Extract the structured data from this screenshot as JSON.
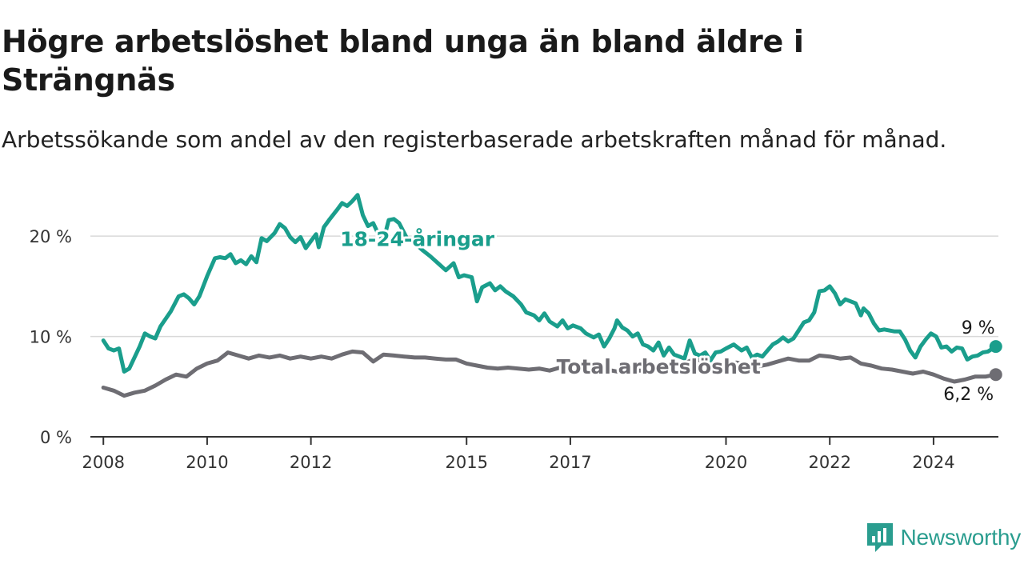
{
  "title": "Högre arbetslöshet bland unga än bland äldre i Strängnäs",
  "subtitle": "Arbetssökande som andel av den registerbaserade arbetskraften månad för månad.",
  "brand": {
    "name": "Newsworthy",
    "color": "#2a9d8f",
    "icon": "newsworthy-logo-icon"
  },
  "chart_data": {
    "type": "line",
    "title": "Högre arbetslöshet bland unga än bland äldre i Strängnäs",
    "subtitle": "Arbetssökande som andel av den registerbaserade arbetskraften månad för månad.",
    "xlabel": "",
    "ylabel": "",
    "x_range": [
      2007.75,
      2025.25
    ],
    "ylim": [
      0,
      24
    ],
    "y_ticks": [
      0,
      10,
      20
    ],
    "y_tick_labels": [
      "0 %",
      "10 %",
      "20 %"
    ],
    "x_ticks": [
      2008,
      2010,
      2012,
      2015,
      2017,
      2020,
      2022,
      2024
    ],
    "x_tick_labels": [
      "2008",
      "2010",
      "2012",
      "2015",
      "2017",
      "2020",
      "2022",
      "2024"
    ],
    "grid": "horizontal",
    "legend": "inline labels",
    "series": [
      {
        "name": "18-24-åringar",
        "color": "#1a9e8c",
        "end_label": "9 %",
        "points": [
          [
            2008.0,
            9.6
          ],
          [
            2008.1,
            8.8
          ],
          [
            2008.2,
            8.6
          ],
          [
            2008.3,
            8.8
          ],
          [
            2008.4,
            6.5
          ],
          [
            2008.5,
            6.8
          ],
          [
            2008.7,
            9.0
          ],
          [
            2008.8,
            10.3
          ],
          [
            2008.9,
            10.0
          ],
          [
            2009.0,
            9.8
          ],
          [
            2009.1,
            11.0
          ],
          [
            2009.3,
            12.5
          ],
          [
            2009.45,
            14.0
          ],
          [
            2009.55,
            14.2
          ],
          [
            2009.65,
            13.8
          ],
          [
            2009.75,
            13.2
          ],
          [
            2009.85,
            14.0
          ],
          [
            2010.0,
            16.0
          ],
          [
            2010.15,
            17.8
          ],
          [
            2010.25,
            17.9
          ],
          [
            2010.35,
            17.8
          ],
          [
            2010.45,
            18.2
          ],
          [
            2010.55,
            17.3
          ],
          [
            2010.65,
            17.6
          ],
          [
            2010.75,
            17.2
          ],
          [
            2010.85,
            18.0
          ],
          [
            2010.95,
            17.4
          ],
          [
            2011.05,
            19.8
          ],
          [
            2011.15,
            19.5
          ],
          [
            2011.3,
            20.3
          ],
          [
            2011.4,
            21.2
          ],
          [
            2011.5,
            20.8
          ],
          [
            2011.6,
            19.9
          ],
          [
            2011.7,
            19.4
          ],
          [
            2011.8,
            19.9
          ],
          [
            2011.9,
            18.8
          ],
          [
            2012.0,
            19.5
          ],
          [
            2012.1,
            20.2
          ],
          [
            2012.15,
            18.9
          ],
          [
            2012.25,
            20.9
          ],
          [
            2012.35,
            21.6
          ],
          [
            2012.5,
            22.6
          ],
          [
            2012.6,
            23.3
          ],
          [
            2012.7,
            23.0
          ],
          [
            2012.8,
            23.5
          ],
          [
            2012.9,
            24.1
          ],
          [
            2013.0,
            22.1
          ],
          [
            2013.1,
            21.0
          ],
          [
            2013.2,
            21.3
          ],
          [
            2013.3,
            20.2
          ],
          [
            2013.4,
            19.6
          ],
          [
            2013.5,
            21.6
          ],
          [
            2013.6,
            21.7
          ],
          [
            2013.7,
            21.3
          ],
          [
            2013.85,
            19.8
          ],
          [
            2014.0,
            19.3
          ],
          [
            2014.15,
            18.6
          ],
          [
            2014.3,
            18.0
          ],
          [
            2014.45,
            17.3
          ],
          [
            2014.6,
            16.6
          ],
          [
            2014.75,
            17.3
          ],
          [
            2014.85,
            15.9
          ],
          [
            2014.95,
            16.1
          ],
          [
            2015.1,
            15.9
          ],
          [
            2015.2,
            13.5
          ],
          [
            2015.3,
            14.9
          ],
          [
            2015.45,
            15.3
          ],
          [
            2015.55,
            14.6
          ],
          [
            2015.65,
            15.0
          ],
          [
            2015.75,
            14.5
          ],
          [
            2015.9,
            14.0
          ],
          [
            2016.05,
            13.2
          ],
          [
            2016.15,
            12.4
          ],
          [
            2016.3,
            12.1
          ],
          [
            2016.4,
            11.6
          ],
          [
            2016.5,
            12.3
          ],
          [
            2016.6,
            11.5
          ],
          [
            2016.75,
            11.0
          ],
          [
            2016.85,
            11.6
          ],
          [
            2016.95,
            10.8
          ],
          [
            2017.05,
            11.1
          ],
          [
            2017.2,
            10.8
          ],
          [
            2017.3,
            10.3
          ],
          [
            2017.45,
            9.9
          ],
          [
            2017.55,
            10.2
          ],
          [
            2017.65,
            9.0
          ],
          [
            2017.75,
            9.8
          ],
          [
            2017.85,
            10.8
          ],
          [
            2017.9,
            11.6
          ],
          [
            2018.0,
            10.9
          ],
          [
            2018.1,
            10.6
          ],
          [
            2018.2,
            10.0
          ],
          [
            2018.3,
            10.3
          ],
          [
            2018.4,
            9.2
          ],
          [
            2018.5,
            9.0
          ],
          [
            2018.6,
            8.6
          ],
          [
            2018.7,
            9.4
          ],
          [
            2018.8,
            8.1
          ],
          [
            2018.9,
            8.9
          ],
          [
            2019.0,
            8.2
          ],
          [
            2019.1,
            8.0
          ],
          [
            2019.2,
            7.8
          ],
          [
            2019.3,
            9.6
          ],
          [
            2019.4,
            8.3
          ],
          [
            2019.5,
            8.1
          ],
          [
            2019.6,
            8.4
          ],
          [
            2019.7,
            7.6
          ],
          [
            2019.8,
            8.4
          ],
          [
            2019.9,
            8.5
          ],
          [
            2020.0,
            8.8
          ],
          [
            2020.15,
            9.2
          ],
          [
            2020.3,
            8.6
          ],
          [
            2020.4,
            8.9
          ],
          [
            2020.5,
            7.9
          ],
          [
            2020.6,
            8.2
          ],
          [
            2020.7,
            8.0
          ],
          [
            2020.8,
            8.6
          ],
          [
            2020.9,
            9.2
          ],
          [
            2021.0,
            9.5
          ],
          [
            2021.1,
            9.9
          ],
          [
            2021.2,
            9.5
          ],
          [
            2021.3,
            9.8
          ],
          [
            2021.4,
            10.6
          ],
          [
            2021.5,
            11.4
          ],
          [
            2021.6,
            11.6
          ],
          [
            2021.7,
            12.4
          ],
          [
            2021.8,
            14.5
          ],
          [
            2021.9,
            14.6
          ],
          [
            2022.0,
            15.0
          ],
          [
            2022.1,
            14.3
          ],
          [
            2022.2,
            13.2
          ],
          [
            2022.3,
            13.7
          ],
          [
            2022.4,
            13.5
          ],
          [
            2022.5,
            13.3
          ],
          [
            2022.6,
            12.1
          ],
          [
            2022.65,
            12.8
          ],
          [
            2022.75,
            12.3
          ],
          [
            2022.85,
            11.3
          ],
          [
            2022.95,
            10.6
          ],
          [
            2023.05,
            10.7
          ],
          [
            2023.15,
            10.6
          ],
          [
            2023.25,
            10.5
          ],
          [
            2023.35,
            10.5
          ],
          [
            2023.45,
            9.7
          ],
          [
            2023.55,
            8.6
          ],
          [
            2023.65,
            7.9
          ],
          [
            2023.75,
            9.0
          ],
          [
            2023.85,
            9.7
          ],
          [
            2023.95,
            10.3
          ],
          [
            2024.05,
            10.0
          ],
          [
            2024.15,
            8.9
          ],
          [
            2024.25,
            9.0
          ],
          [
            2024.35,
            8.5
          ],
          [
            2024.45,
            8.9
          ],
          [
            2024.55,
            8.8
          ],
          [
            2024.65,
            7.7
          ],
          [
            2024.75,
            8.0
          ],
          [
            2024.85,
            8.1
          ],
          [
            2024.95,
            8.4
          ],
          [
            2025.05,
            8.5
          ],
          [
            2025.2,
            9.0
          ]
        ]
      },
      {
        "name": "Total arbetslöshet",
        "color": "#6e6d73",
        "end_label": "6,2 %",
        "points": [
          [
            2008.0,
            4.9
          ],
          [
            2008.2,
            4.6
          ],
          [
            2008.4,
            4.1
          ],
          [
            2008.6,
            4.4
          ],
          [
            2008.8,
            4.6
          ],
          [
            2009.0,
            5.1
          ],
          [
            2009.2,
            5.7
          ],
          [
            2009.4,
            6.2
          ],
          [
            2009.6,
            6.0
          ],
          [
            2009.8,
            6.8
          ],
          [
            2010.0,
            7.3
          ],
          [
            2010.2,
            7.6
          ],
          [
            2010.4,
            8.4
          ],
          [
            2010.6,
            8.1
          ],
          [
            2010.8,
            7.8
          ],
          [
            2011.0,
            8.1
          ],
          [
            2011.2,
            7.9
          ],
          [
            2011.4,
            8.1
          ],
          [
            2011.6,
            7.8
          ],
          [
            2011.8,
            8.0
          ],
          [
            2012.0,
            7.8
          ],
          [
            2012.2,
            8.0
          ],
          [
            2012.4,
            7.8
          ],
          [
            2012.6,
            8.2
          ],
          [
            2012.8,
            8.5
          ],
          [
            2013.0,
            8.4
          ],
          [
            2013.2,
            7.5
          ],
          [
            2013.4,
            8.2
          ],
          [
            2013.6,
            8.1
          ],
          [
            2013.8,
            8.0
          ],
          [
            2014.0,
            7.9
          ],
          [
            2014.2,
            7.9
          ],
          [
            2014.4,
            7.8
          ],
          [
            2014.6,
            7.7
          ],
          [
            2014.8,
            7.7
          ],
          [
            2015.0,
            7.3
          ],
          [
            2015.2,
            7.1
          ],
          [
            2015.4,
            6.9
          ],
          [
            2015.6,
            6.8
          ],
          [
            2015.8,
            6.9
          ],
          [
            2016.0,
            6.8
          ],
          [
            2016.2,
            6.7
          ],
          [
            2016.4,
            6.8
          ],
          [
            2016.6,
            6.6
          ],
          [
            2016.8,
            6.9
          ],
          [
            2017.0,
            6.8
          ],
          [
            2017.2,
            6.7
          ],
          [
            2017.4,
            6.5
          ],
          [
            2017.6,
            6.6
          ],
          [
            2017.8,
            6.6
          ],
          [
            2018.0,
            6.4
          ],
          [
            2018.2,
            6.6
          ],
          [
            2018.4,
            6.6
          ],
          [
            2018.6,
            6.8
          ],
          [
            2018.8,
            7.2
          ],
          [
            2019.0,
            7.1
          ],
          [
            2019.2,
            7.3
          ],
          [
            2019.4,
            7.8
          ],
          [
            2019.6,
            7.4
          ],
          [
            2019.8,
            7.3
          ],
          [
            2020.0,
            7.2
          ],
          [
            2020.2,
            7.4
          ],
          [
            2020.4,
            7.2
          ],
          [
            2020.6,
            7.0
          ],
          [
            2020.8,
            7.2
          ],
          [
            2021.0,
            7.5
          ],
          [
            2021.2,
            7.8
          ],
          [
            2021.4,
            7.6
          ],
          [
            2021.6,
            7.6
          ],
          [
            2021.8,
            8.1
          ],
          [
            2022.0,
            8.0
          ],
          [
            2022.2,
            7.8
          ],
          [
            2022.4,
            7.9
          ],
          [
            2022.6,
            7.3
          ],
          [
            2022.8,
            7.1
          ],
          [
            2023.0,
            6.8
          ],
          [
            2023.2,
            6.7
          ],
          [
            2023.4,
            6.5
          ],
          [
            2023.6,
            6.3
          ],
          [
            2023.8,
            6.5
          ],
          [
            2024.0,
            6.2
          ],
          [
            2024.2,
            5.8
          ],
          [
            2024.4,
            5.5
          ],
          [
            2024.6,
            5.7
          ],
          [
            2024.8,
            6.0
          ],
          [
            2025.0,
            6.0
          ],
          [
            2025.2,
            6.2
          ]
        ]
      }
    ]
  }
}
